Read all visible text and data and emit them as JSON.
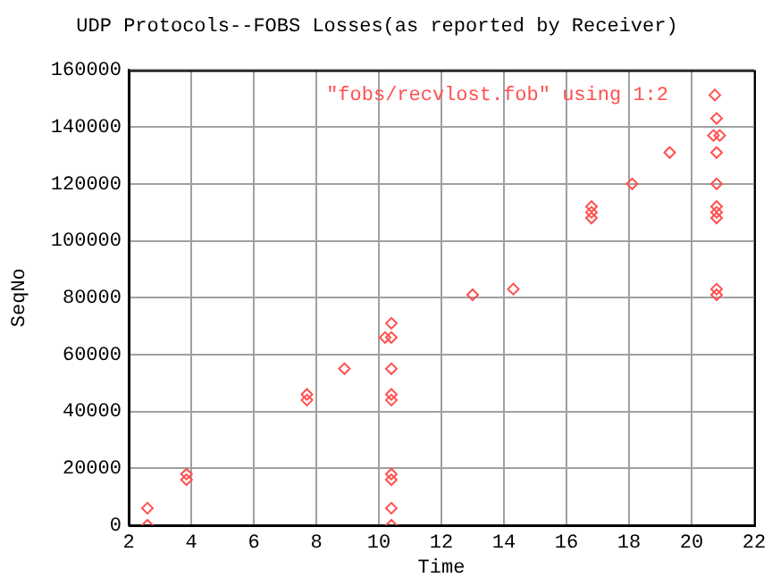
{
  "chart_data": {
    "type": "scatter",
    "title": "UDP Protocols--FOBS Losses(as reported by Receiver)",
    "xlabel": "Time",
    "ylabel": "SeqNo",
    "xlim": [
      2,
      22
    ],
    "xticks": [
      2,
      4,
      6,
      8,
      10,
      12,
      14,
      16,
      18,
      20,
      22
    ],
    "ylim": [
      0,
      160000
    ],
    "yticks": [
      0,
      20000,
      40000,
      60000,
      80000,
      100000,
      120000,
      140000,
      160000
    ],
    "grid": true,
    "legend": "top right",
    "marker": "diamond",
    "series": [
      {
        "name": "\"fobs/recvlost.fob\" using 1:2",
        "color": "#ff5050",
        "x": [
          2.6,
          2.6,
          3.85,
          3.85,
          7.7,
          7.7,
          8.9,
          10.2,
          10.4,
          10.4,
          10.4,
          10.4,
          10.4,
          10.4,
          10.4,
          10.4,
          10.4,
          13,
          14.3,
          16.8,
          16.8,
          16.8,
          18.1,
          19.3,
          20.7,
          20.8,
          20.8,
          20.8,
          20.8,
          20.8,
          20.8,
          20.8,
          20.8,
          20.9
        ],
        "values": [
          6000,
          0,
          16000,
          18000,
          44000,
          46000,
          55000,
          66000,
          66000,
          71000,
          55000,
          44000,
          46000,
          16000,
          18000,
          6000,
          0,
          81000,
          83000,
          108000,
          110000,
          112000,
          120000,
          131000,
          137000,
          143000,
          131000,
          120000,
          108000,
          110000,
          112000,
          81000,
          83000,
          137000
        ]
      }
    ]
  }
}
